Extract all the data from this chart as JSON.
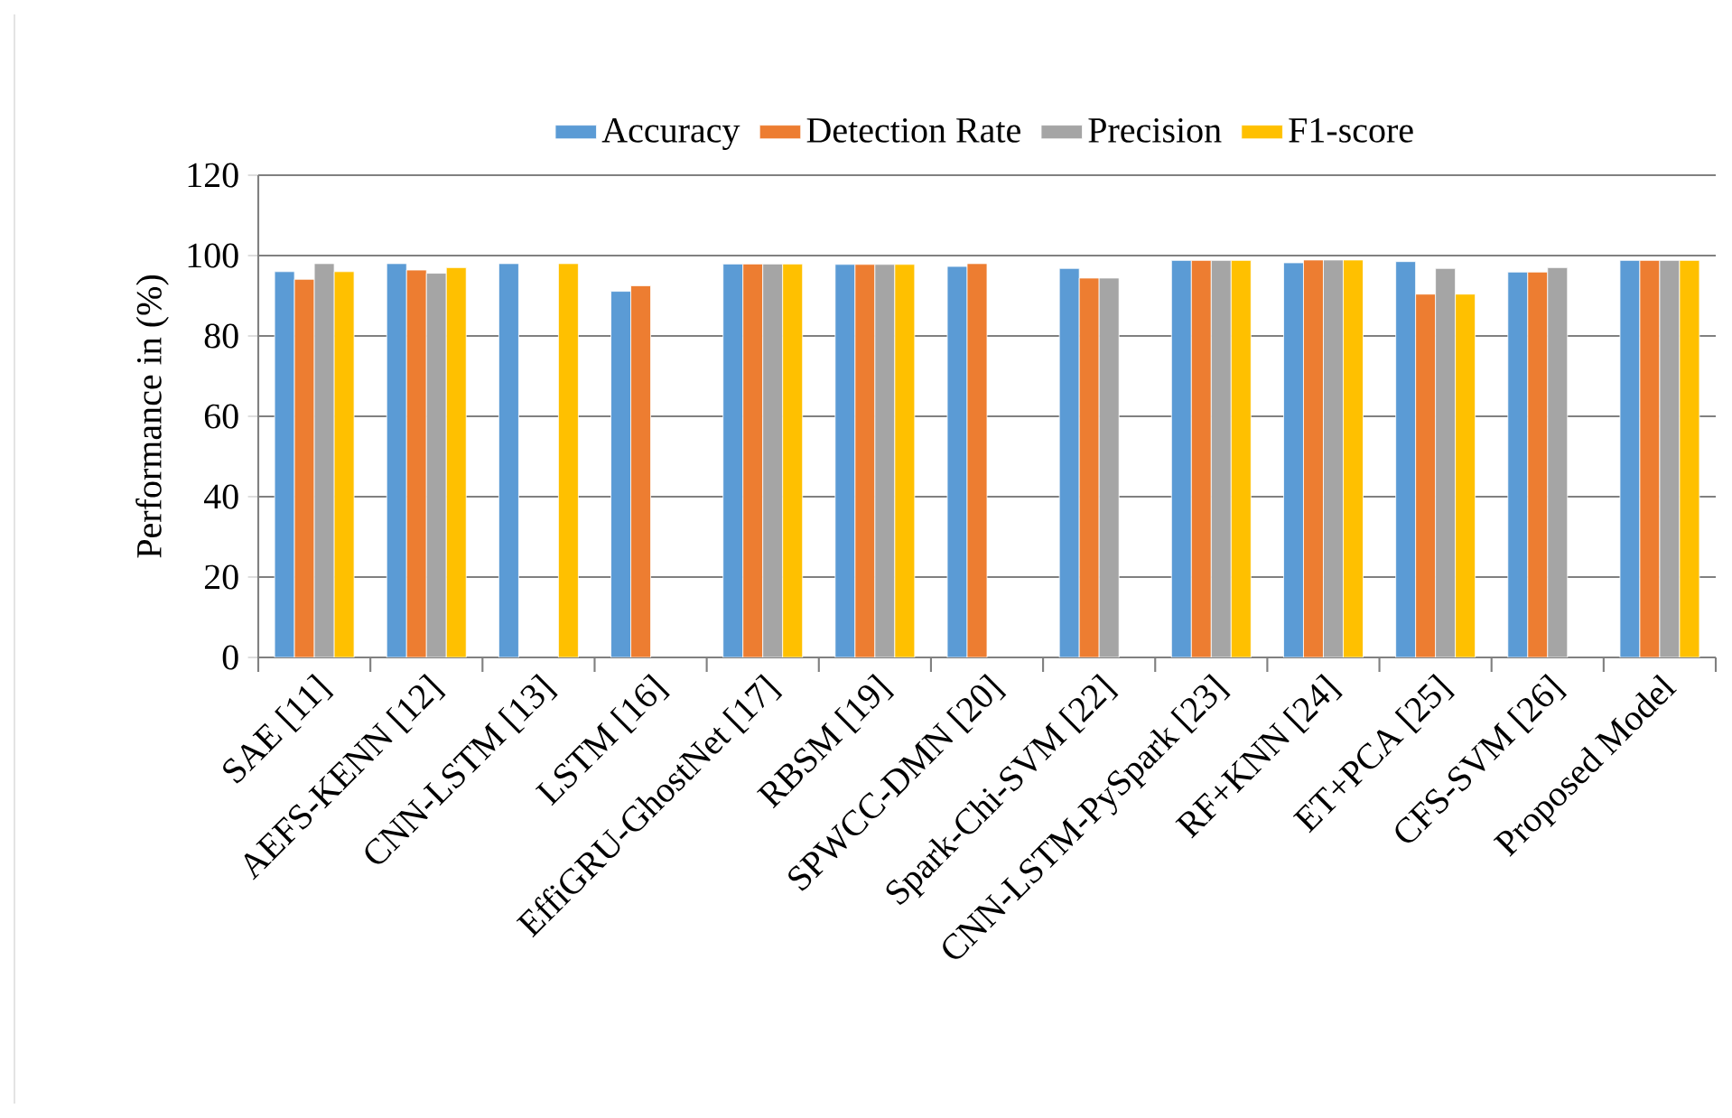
{
  "chart_data": {
    "type": "bar",
    "ylabel": "Performance in (%)",
    "categories": [
      "SAE [11]",
      "AEFS-KENN [12]",
      "CNN-LSTM [13]",
      "LSTM [16]",
      "EffiGRU-GhostNet [17]",
      "RBSM [19]",
      "SPWCC-DMN [20]",
      "Spark-Chi-SVM [22]",
      "CNN-LSTM-PySpark [23]",
      "RF+KNN [24]",
      "ET+PCA [25]",
      "CFS-SVM [26]",
      "Proposed Model"
    ],
    "series": [
      {
        "name": "Accuracy",
        "color": "#5b9bd5",
        "values": [
          96,
          98,
          98,
          91.1,
          97.9,
          97.8,
          97.3,
          96.8,
          98.8,
          98.2,
          98.5,
          95.9,
          98.8
        ]
      },
      {
        "name": "Detection Rate",
        "color": "#ed7d31",
        "values": [
          94.1,
          96.4,
          null,
          92.5,
          97.9,
          97.8,
          98,
          94.4,
          98.8,
          98.9,
          90.4,
          95.9,
          98.8
        ]
      },
      {
        "name": "Precision",
        "color": "#a5a5a5",
        "values": [
          98,
          95.6,
          null,
          null,
          97.9,
          97.8,
          null,
          94.4,
          98.8,
          98.9,
          96.8,
          97,
          98.8
        ]
      },
      {
        "name": "F1-score",
        "color": "#ffc000",
        "values": [
          96,
          97,
          98,
          null,
          97.9,
          97.8,
          null,
          null,
          98.8,
          98.9,
          90.4,
          null,
          98.8
        ]
      }
    ],
    "ylim": [
      0,
      120
    ],
    "yticks": [
      0,
      20,
      40,
      60,
      80,
      100,
      120
    ],
    "grid": "y",
    "legend": "top"
  }
}
